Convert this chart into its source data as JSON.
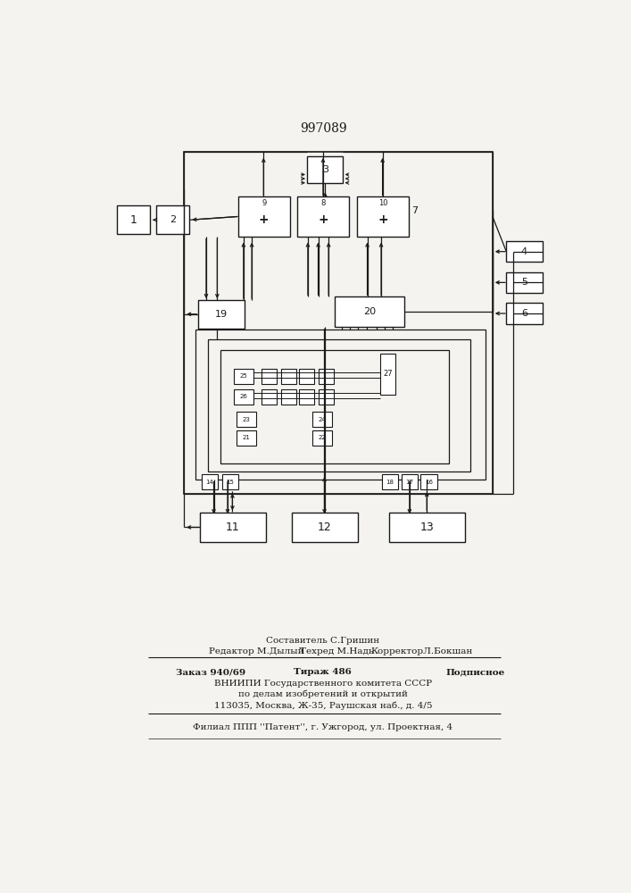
{
  "title": "997089",
  "bg_color": "#f5f3ef",
  "line_color": "#1a1a1a",
  "box_color": "#ffffff",
  "footer": {
    "editor": "Редактор М.Дылый",
    "compiler_line1": "Составитель С.Гришин",
    "compiler_line2": "Техред М.Надь",
    "corrector": "КорректорЛ.Бокшан",
    "order": "Заказ 940/69",
    "circulation": "Тираж 486",
    "subscription": "Подписное",
    "institute1": "ВНИИПИ Государственного комитета СССР",
    "institute2": "по делам изобретений и открытий",
    "institute3": "113035, Москва, Ж-35, Раушская наб., д. 4/5",
    "branch": "Филиал ППП ''Патент'', г. Ужгород, ул. Проектная, 4"
  }
}
